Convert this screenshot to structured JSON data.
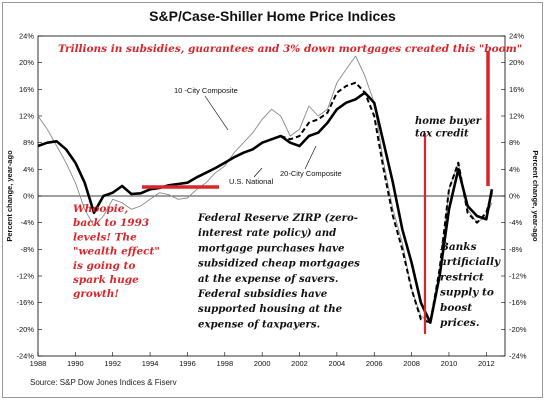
{
  "chart_data": {
    "type": "line",
    "title": "S&P/Case-Shiller Home Price Indices",
    "ylabel_left": "Percent change, year-ago",
    "ylabel_right": "Percent change, year-ago",
    "source": "Source: S&P Dow Jones Indices & Fiserv",
    "xlim": [
      1988,
      2013
    ],
    "ylim": [
      -24,
      24
    ],
    "x_ticks": [
      "1988",
      "1990",
      "1992",
      "1994",
      "1996",
      "1998",
      "2000",
      "2002",
      "2004",
      "2006",
      "2008",
      "2010",
      "2012"
    ],
    "y_ticks": [
      "-24%",
      "-20%",
      "-16%",
      "-12%",
      "-8%",
      "-4%",
      "0%",
      "4%",
      "8%",
      "12%",
      "16%",
      "20%",
      "24%"
    ],
    "y_tick_values": [
      -24,
      -20,
      -16,
      -12,
      -8,
      -4,
      0,
      4,
      8,
      12,
      16,
      20,
      24
    ],
    "series": [
      {
        "name": "U.S. National",
        "points": [
          [
            1988,
            7.5
          ],
          [
            1988.5,
            8.0
          ],
          [
            1989,
            8.2
          ],
          [
            1989.5,
            7.0
          ],
          [
            1990,
            5.0
          ],
          [
            1990.5,
            2.0
          ],
          [
            1991,
            -2.5
          ],
          [
            1991.5,
            0.0
          ],
          [
            1992,
            0.5
          ],
          [
            1992.5,
            1.5
          ],
          [
            1993,
            0.3
          ],
          [
            1993.5,
            0.4
          ],
          [
            1994,
            1.0
          ],
          [
            1994.5,
            1.2
          ],
          [
            1995,
            1.6
          ],
          [
            1995.5,
            1.8
          ],
          [
            1996,
            2.0
          ],
          [
            1996.5,
            2.8
          ],
          [
            1997,
            3.5
          ],
          [
            1997.5,
            4.2
          ],
          [
            1998,
            5.0
          ],
          [
            1998.5,
            5.8
          ],
          [
            1999,
            6.5
          ],
          [
            1999.5,
            7.0
          ],
          [
            2000,
            8.0
          ],
          [
            2000.5,
            8.5
          ],
          [
            2001,
            9.0
          ],
          [
            2001.5,
            8.0
          ],
          [
            2002,
            7.5
          ],
          [
            2002.5,
            9.0
          ],
          [
            2003,
            9.5
          ],
          [
            2003.5,
            11.0
          ],
          [
            2004,
            13.0
          ],
          [
            2004.5,
            14.0
          ],
          [
            2005,
            14.5
          ],
          [
            2005.5,
            15.5
          ],
          [
            2006,
            14.0
          ],
          [
            2006.5,
            8.0
          ],
          [
            2007,
            2.0
          ],
          [
            2007.5,
            -5.0
          ],
          [
            2008,
            -10.0
          ],
          [
            2008.5,
            -16.0
          ],
          [
            2009,
            -19.0
          ],
          [
            2009.5,
            -12.0
          ],
          [
            2010,
            -2.0
          ],
          [
            2010.5,
            4.0
          ],
          [
            2011,
            -1.5
          ],
          [
            2011.5,
            -3.0
          ],
          [
            2012,
            -3.5
          ],
          [
            2012.3,
            1.0
          ]
        ]
      },
      {
        "name": "10-City Composite",
        "points": [
          [
            1988,
            12.0
          ],
          [
            1988.5,
            10.0
          ],
          [
            1989,
            7.5
          ],
          [
            1989.5,
            5.0
          ],
          [
            1990,
            2.0
          ],
          [
            1990.5,
            -2.0
          ],
          [
            1991,
            -4.5
          ],
          [
            1991.5,
            -3.0
          ],
          [
            1992,
            -0.5
          ],
          [
            1992.5,
            -1.0
          ],
          [
            1993,
            -2.0
          ],
          [
            1993.5,
            -1.5
          ],
          [
            1994,
            -0.5
          ],
          [
            1994.5,
            0.5
          ],
          [
            1995,
            0.2
          ],
          [
            1995.5,
            -0.5
          ],
          [
            1996,
            -0.3
          ],
          [
            1996.5,
            1.0
          ],
          [
            1997,
            2.0
          ],
          [
            1997.5,
            3.5
          ],
          [
            1998,
            4.5
          ],
          [
            1998.5,
            6.5
          ],
          [
            1999,
            8.0
          ],
          [
            1999.5,
            9.5
          ],
          [
            2000,
            11.5
          ],
          [
            2000.5,
            13.0
          ],
          [
            2001,
            12.0
          ],
          [
            2001.5,
            9.0
          ],
          [
            2002,
            10.0
          ],
          [
            2002.5,
            13.5
          ],
          [
            2003,
            12.0
          ],
          [
            2003.5,
            13.0
          ],
          [
            2004,
            17.0
          ],
          [
            2004.5,
            19.0
          ],
          [
            2005,
            21.0
          ],
          [
            2005.5,
            18.0
          ],
          [
            2006,
            14.0
          ],
          [
            2006.5,
            5.0
          ],
          [
            2007,
            -2.0
          ],
          [
            2007.5,
            -7.0
          ],
          [
            2008,
            -14.0
          ],
          [
            2008.5,
            -18.0
          ],
          [
            2009,
            -19.0
          ],
          [
            2009.5,
            -12.0
          ],
          [
            2010,
            1.0
          ],
          [
            2010.5,
            5.0
          ],
          [
            2011,
            -2.0
          ],
          [
            2011.5,
            -4.0
          ],
          [
            2012,
            -3.0
          ],
          [
            2012.3,
            -1.0
          ]
        ]
      },
      {
        "name": "20-City Composite",
        "points": [
          [
            2001,
            9.0
          ],
          [
            2001.5,
            8.5
          ],
          [
            2002,
            9.0
          ],
          [
            2002.5,
            11.0
          ],
          [
            2003,
            11.5
          ],
          [
            2003.5,
            12.5
          ],
          [
            2004,
            15.5
          ],
          [
            2004.5,
            16.5
          ],
          [
            2005,
            17.0
          ],
          [
            2005.5,
            15.5
          ],
          [
            2006,
            12.0
          ],
          [
            2006.5,
            4.0
          ],
          [
            2007,
            -3.0
          ],
          [
            2007.5,
            -8.0
          ],
          [
            2008,
            -14.0
          ],
          [
            2008.5,
            -18.5
          ],
          [
            2009,
            -19.0
          ],
          [
            2009.5,
            -11.0
          ],
          [
            2010,
            1.0
          ],
          [
            2010.5,
            5.0
          ],
          [
            2011,
            -2.5
          ],
          [
            2011.5,
            -4.0
          ],
          [
            2012,
            -2.5
          ],
          [
            2012.3,
            0.5
          ]
        ]
      }
    ],
    "series_labels": {
      "ten": "10 -City Composite",
      "us": "U.S. National",
      "twenty": "20-City Composite"
    },
    "annotations": {
      "top": "Trillions in subsidies, guarantees and 3% down mortgages created this \"boom\"",
      "whoopie": [
        "Whoopie,",
        "back to 1993",
        "levels! The",
        "\"wealth effect\"",
        "is going to",
        "spark huge",
        "growth!"
      ],
      "fed": [
        "Federal Reserve ZIRP (zero-",
        "interest rate policy) and",
        "mortgage purchases have",
        "subsidized cheap mortgages",
        "at the expense of savers.",
        "Federal subsidies have",
        "supported housing at the",
        "expense of taxpayers."
      ],
      "taxcredit": [
        "home buyer",
        "tax credit"
      ],
      "banks": [
        "Banks",
        "artificially",
        "restrict",
        "supply to",
        "boost",
        "prices."
      ]
    },
    "colors": {
      "us": "#000000",
      "ten": "#8a8a8a",
      "twenty": "#000000",
      "highlight": "#d9262b",
      "annotation_red": "#d9262b",
      "annotation_black": "#111111"
    }
  }
}
